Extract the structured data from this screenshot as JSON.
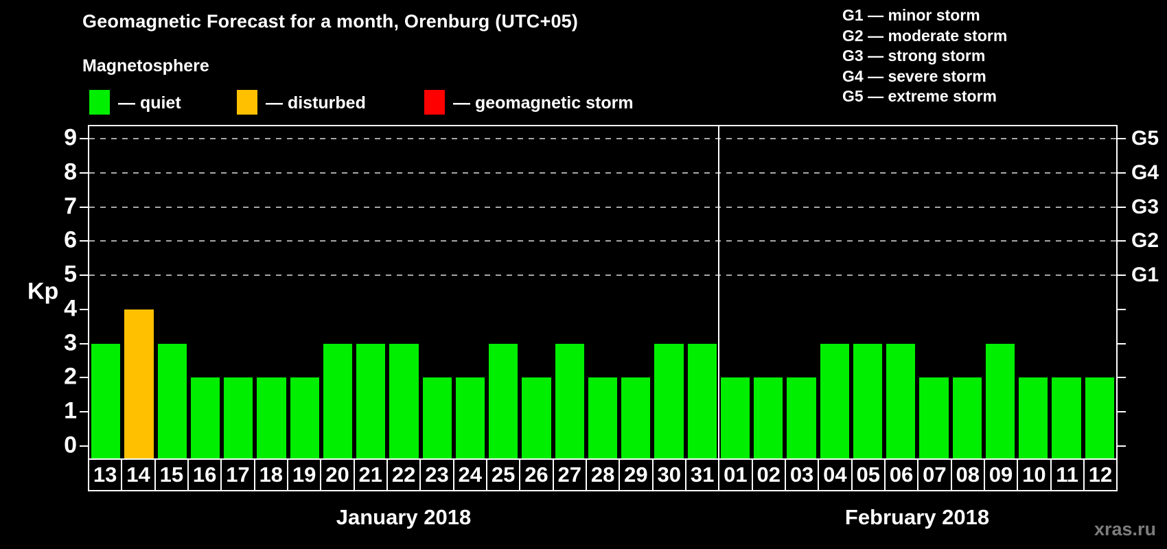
{
  "title": "Geomagnetic Forecast for a month, Orenburg (UTC+05)",
  "subtitle": "Magnetosphere",
  "legend": {
    "items": [
      {
        "name": "quiet",
        "label": "— quiet",
        "color": "#00EE00"
      },
      {
        "name": "disturbed",
        "label": "— disturbed",
        "color": "#FFC000"
      },
      {
        "name": "storm",
        "label": "— geomagnetic storm",
        "color": "#FF0000"
      }
    ]
  },
  "g_legend": {
    "items": [
      "G1 — minor storm",
      "G2 — moderate storm",
      "G3 — strong storm",
      "G4 — severe storm",
      "G5 — extreme storm"
    ]
  },
  "watermark": "xras.ru",
  "chart_data": {
    "type": "bar",
    "title": "Geomagnetic Forecast for a month, Orenburg (UTC+05)",
    "ylabel": "Kp",
    "ylim": [
      0,
      9
    ],
    "yticks": [
      0,
      1,
      2,
      3,
      4,
      5,
      6,
      7,
      8,
      9
    ],
    "gridlines": [
      5,
      6,
      7,
      8,
      9
    ],
    "grid_style": "dashed",
    "right_axis": {
      "labels": [
        "G1",
        "G2",
        "G3",
        "G4",
        "G5"
      ],
      "positions": [
        5,
        6,
        7,
        8,
        9
      ]
    },
    "colors": {
      "quiet": "#00EE00",
      "disturbed": "#FFC000",
      "storm": "#FF0000"
    },
    "months": [
      {
        "label": "January 2018",
        "days": [
          "13",
          "14",
          "15",
          "16",
          "17",
          "18",
          "19",
          "20",
          "21",
          "22",
          "23",
          "24",
          "25",
          "26",
          "27",
          "28",
          "29",
          "30",
          "31"
        ],
        "values": [
          3,
          4,
          3,
          2,
          2,
          2,
          2,
          3,
          3,
          3,
          2,
          2,
          3,
          2,
          3,
          2,
          2,
          3,
          3
        ],
        "levels": [
          "quiet",
          "disturbed",
          "quiet",
          "quiet",
          "quiet",
          "quiet",
          "quiet",
          "quiet",
          "quiet",
          "quiet",
          "quiet",
          "quiet",
          "quiet",
          "quiet",
          "quiet",
          "quiet",
          "quiet",
          "quiet",
          "quiet"
        ]
      },
      {
        "label": "February 2018",
        "days": [
          "01",
          "02",
          "03",
          "04",
          "05",
          "06",
          "07",
          "08",
          "09",
          "10",
          "11",
          "12"
        ],
        "values": [
          2,
          2,
          2,
          3,
          3,
          3,
          2,
          2,
          3,
          2,
          2,
          2
        ],
        "levels": [
          "quiet",
          "quiet",
          "quiet",
          "quiet",
          "quiet",
          "quiet",
          "quiet",
          "quiet",
          "quiet",
          "quiet",
          "quiet",
          "quiet"
        ]
      }
    ]
  }
}
